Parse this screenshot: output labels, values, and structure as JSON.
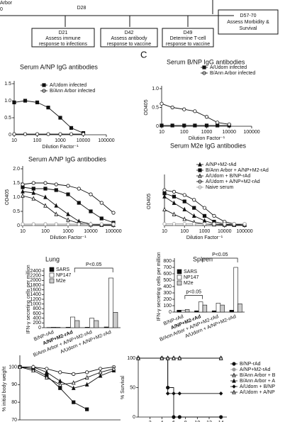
{
  "timeline": {
    "start_label": "Arbor",
    "start_day": "0",
    "marker": "D28",
    "boxes": [
      {
        "day": "D21",
        "text": [
          "Assess immune",
          "response to infections"
        ]
      },
      {
        "day": "D42",
        "text": [
          "Assess antibody",
          "response to vaccine"
        ]
      },
      {
        "day": "D49",
        "text": [
          "Determine T-cell",
          "response to vaccine"
        ]
      },
      {
        "day": "D57-70",
        "text": [
          "Assess Morbidity &",
          "Survival"
        ]
      }
    ]
  },
  "panel_label": "C",
  "chart_data": [
    {
      "type": "line",
      "title": "Serum A/NP IgG antibodies",
      "xlabel": "Dilution Factor⁻¹",
      "xscale": "log",
      "x": [
        10,
        30,
        100,
        300,
        1000,
        3000,
        10000
      ],
      "xlim": [
        10,
        100000
      ],
      "xticks": [
        10,
        100,
        1000,
        10000,
        100000
      ],
      "ylim": [
        0,
        1.5
      ],
      "yticks": [
        0,
        0.5,
        {
          "value": 1,
          "label": "1.0"
        },
        1.5
      ],
      "series": [
        {
          "name": "A/Udorn infected",
          "color": "#111",
          "marker": "square-filled",
          "values": [
            0.95,
            1.0,
            0.95,
            0.8,
            0.5,
            0.2,
            0.05
          ]
        },
        {
          "name": "B/Ann Arbor infected",
          "color": "#111",
          "marker": "circle-open",
          "values": [
            0.02,
            0.02,
            0.02,
            0.02,
            0.02,
            0.02,
            0.02
          ]
        }
      ]
    },
    {
      "type": "line",
      "title": "Serum B/NP IgG antibodies",
      "ylabel": "OD405",
      "xlabel": "Dilution Factor⁻¹",
      "xscale": "log",
      "x": [
        10,
        30,
        100,
        300,
        1000,
        3000,
        10000
      ],
      "xlim": [
        10,
        100000
      ],
      "xticks": [
        10,
        100,
        1000,
        10000,
        100000
      ],
      "ylim": [
        0,
        1
      ],
      "yticks": [
        0,
        0.5,
        {
          "value": 1,
          "label": "1.0"
        }
      ],
      "series": [
        {
          "name": "A/Udorn infected",
          "color": "#111",
          "marker": "square-filled",
          "values": [
            0.02,
            0.02,
            0.02,
            0.02,
            0.02,
            0.02,
            0.02
          ]
        },
        {
          "name": "B/Ann Arbor infected",
          "color": "#111",
          "marker": "circle-open",
          "values": [
            0.6,
            0.5,
            0.45,
            0.4,
            0.25,
            0.1,
            0.05
          ]
        }
      ]
    },
    {
      "type": "line",
      "title": "Serum A/NP IgG antibodies",
      "ylabel": "OD405",
      "xlabel": "Dilution Factor⁻¹",
      "xscale": "log",
      "x": [
        10,
        30,
        100,
        300,
        1000,
        3000,
        10000,
        30000,
        100000
      ],
      "xlim": [
        10,
        100000
      ],
      "xticks": [
        10,
        100,
        1000,
        10000,
        100000
      ],
      "ylim": [
        0,
        2
      ],
      "yticks": [
        0,
        0.5,
        {
          "value": 1,
          "label": "1.0"
        },
        1.5,
        {
          "value": 2,
          "label": "2.0"
        }
      ],
      "series": [
        {
          "color": "#111",
          "marker": "triangle-filled",
          "values": [
            1.2,
            1.15,
            1.0,
            0.7,
            0.4,
            0.15,
            0.05,
            0.02,
            0.02
          ]
        },
        {
          "color": "#111",
          "marker": "square-filled",
          "values": [
            1.35,
            1.3,
            1.3,
            1.25,
            1.1,
            0.8,
            0.5,
            0.25,
            0.1
          ]
        },
        {
          "color": "#111",
          "marker": "circle-open",
          "values": [
            1.45,
            1.5,
            1.5,
            1.45,
            1.4,
            1.3,
            1.1,
            0.8,
            0.45
          ]
        },
        {
          "color": "#111",
          "marker": "triangle-open",
          "values": [
            1.05,
            0.95,
            0.7,
            0.4,
            0.2,
            0.08,
            0.03,
            0.02,
            0.02
          ]
        },
        {
          "color": "#999",
          "marker": "circle-open",
          "values": [
            0.05,
            0.05,
            0.05,
            0.05,
            0.05,
            0.05,
            0.05,
            0.05,
            0.05
          ]
        }
      ]
    },
    {
      "type": "line",
      "title": "Serum M2e IgG antibodies",
      "ylabel": "OD405",
      "xlabel": "Dilution Factor⁻¹",
      "xscale": "log",
      "x": [
        10,
        30,
        100,
        300,
        1000,
        3000,
        10000,
        30000,
        100000
      ],
      "xlim": [
        10,
        100000
      ],
      "xticks": [
        10,
        100,
        1000,
        10000,
        100000
      ],
      "ylim": [
        0,
        1.5
      ],
      "yticks": [],
      "series": [
        {
          "name": "A/NP+M2-rAd",
          "color": "#111",
          "marker": "triangle-filled",
          "values": [
            0.9,
            0.7,
            0.5,
            0.3,
            0.15,
            0.06,
            0.03,
            0.02,
            0.02
          ]
        },
        {
          "name": "B/Ann Arbor + A/NP+M2-rAd",
          "color": "#111",
          "marker": "square-filled",
          "values": [
            1.0,
            0.9,
            0.75,
            0.55,
            0.3,
            0.12,
            0.05,
            0.02,
            0.02
          ]
        },
        {
          "name": "A/Udorn + B/NP-rAd",
          "color": "#111",
          "marker": "triangle-open",
          "values": [
            0.5,
            0.35,
            0.2,
            0.1,
            0.05,
            0.03,
            0.02,
            0.02,
            0.02
          ]
        },
        {
          "name": "A/Udorn + A/NP+M2-rAd",
          "color": "#111",
          "marker": "circle-open",
          "values": [
            1.1,
            1.05,
            0.95,
            0.8,
            0.55,
            0.3,
            0.12,
            0.05,
            0.02
          ]
        },
        {
          "name": "Naive serum",
          "color": "#999",
          "marker": "circle-open",
          "values": [
            0.05,
            0.05,
            0.05,
            0.05,
            0.05,
            0.05,
            0.05,
            0.05,
            0.05
          ]
        }
      ]
    },
    {
      "type": "bar",
      "title": "Lung",
      "ylabel": "IFN-γ secreting cells per million",
      "annotation": "P<0.05",
      "categories": [
        "B/NP-rAd",
        "A/NP+M2-rAd",
        "B/Ann Arbor + A/NP+M2-rAd",
        "A/Udorn + A/NP+M2-rAd"
      ],
      "ylim": [
        0,
        2400
      ],
      "yticks": [
        0,
        200,
        400,
        600,
        800,
        1000,
        1200,
        1400,
        1600,
        1800,
        2000,
        2200,
        2400
      ],
      "series": [
        {
          "name": "SARS",
          "color": "#111",
          "values": [
            10,
            20,
            20,
            30
          ]
        },
        {
          "name": "NP147",
          "color": "#fff",
          "values": [
            20,
            450,
            400,
            2100
          ]
        },
        {
          "name": "M2e",
          "color": "#ccc",
          "values": [
            15,
            300,
            300,
            650
          ]
        }
      ]
    },
    {
      "type": "bar",
      "title": "Spleen",
      "ylabel": "IFN-γ secreting cells per million",
      "annotation": "P<0.05",
      "annotation2": "p<0.05",
      "categories": [
        "B/NP-rAd",
        "A/NP+M2-rAd",
        "B/Ann Arbor + A/NP+M2-rAd",
        "A/Udorn + A/NP+M2-rAd"
      ],
      "ylim": [
        0,
        800
      ],
      "yticks": [
        0,
        100,
        200,
        300,
        400,
        500,
        600,
        700,
        800
      ],
      "series": [
        {
          "name": "SARS",
          "color": "#111",
          "values": [
            30,
            20,
            20,
            30
          ]
        },
        {
          "name": "NP147",
          "color": "#fff",
          "values": [
            30,
            160,
            140,
            700
          ]
        },
        {
          "name": "M2e",
          "color": "#ccc",
          "values": [
            40,
            110,
            110,
            130
          ]
        }
      ]
    },
    {
      "type": "line",
      "ylabel": "% initial body weight",
      "xscale": "linear",
      "x": [
        0,
        2,
        4,
        6,
        8,
        10,
        12,
        14
      ],
      "xlim": [
        0,
        15
      ],
      "ylim": [
        70,
        105
      ],
      "yticks": [
        70,
        80,
        90,
        100
      ],
      "series": [
        {
          "color": "#111",
          "marker": "square-filled",
          "values": [
            100,
            99,
            95,
            88,
            80,
            76,
            null,
            null
          ]
        },
        {
          "color": "#111",
          "marker": "triangle-filled",
          "values": [
            100,
            100,
            97,
            92,
            88,
            90,
            95,
            98
          ]
        },
        {
          "color": "#111",
          "marker": "circle-open",
          "values": [
            100,
            100,
            99,
            97,
            96,
            97,
            99,
            100
          ]
        },
        {
          "color": "#111",
          "marker": "triangle-open",
          "values": [
            100,
            98,
            94,
            90,
            91,
            94,
            97,
            99
          ]
        }
      ]
    },
    {
      "type": "step",
      "ylabel": "% Survival",
      "xscale": "linear",
      "x": [
        0,
        4,
        5,
        6,
        7,
        14
      ],
      "xlim": [
        0,
        15
      ],
      "xticks": [
        2,
        4,
        6,
        8,
        10,
        12,
        14
      ],
      "ylim": [
        0,
        100
      ],
      "yticks": [
        0,
        50,
        100
      ],
      "series": [
        {
          "name": "B/NP-rAd",
          "color": "#111",
          "marker": "circle-filled",
          "values": [
            100,
            100,
            50,
            0,
            0,
            0
          ]
        },
        {
          "name": "A/NP+M2-rAd",
          "color": "#999",
          "marker": "circle-filled",
          "values": [
            100,
            100,
            100,
            100,
            100,
            100
          ]
        },
        {
          "name": "B/Ann Arbor + B",
          "color": "#111",
          "marker": "triangle-open",
          "values": [
            100,
            100,
            100,
            100,
            100,
            100
          ]
        },
        {
          "name": "B/Ann Arbor + A",
          "color": "#111",
          "marker": "triangle-filled",
          "values": [
            100,
            100,
            100,
            100,
            100,
            100
          ]
        },
        {
          "name": "A/Udorn + B/NP",
          "color": "#111",
          "marker": "diamond-filled",
          "values": [
            100,
            100,
            40,
            40,
            40,
            40
          ]
        },
        {
          "name": "A/Udorn + A/NP",
          "color": "#111",
          "marker": "triangle-open",
          "values": [
            100,
            100,
            100,
            100,
            100,
            100
          ]
        }
      ]
    }
  ]
}
